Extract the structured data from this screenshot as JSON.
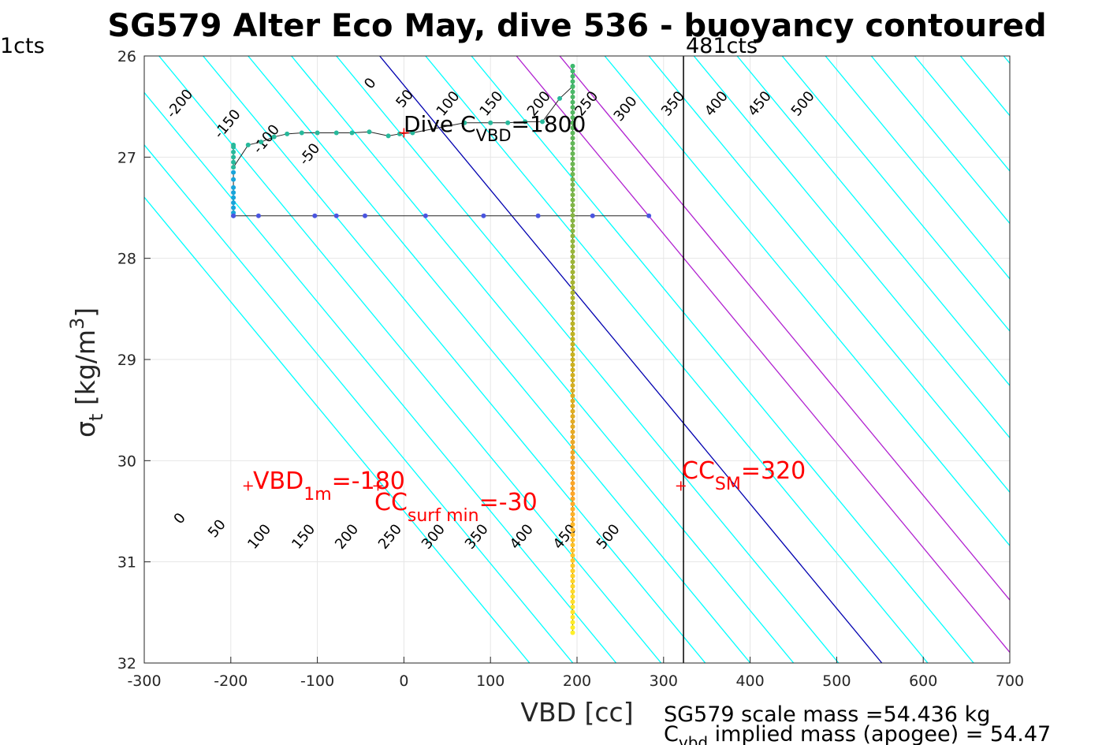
{
  "chart_data": {
    "type": "scatter",
    "title": "SG579 Alter Eco May, dive 536 - buoyancy contoured",
    "xlabel": "VBD [cc]",
    "ylabel_main": "σ",
    "ylabel_sub": "t",
    "ylabel_unit": " [kg/m",
    "ylabel_sup": "3",
    "ylabel_close": "]",
    "xlim": [
      -300,
      700
    ],
    "ylim": [
      26,
      32
    ],
    "y_reversed": true,
    "grid": true,
    "xticks": [
      -300,
      -200,
      -100,
      0,
      100,
      200,
      300,
      400,
      500,
      600,
      700
    ],
    "yticks": [
      26,
      27,
      28,
      29,
      30,
      31,
      32
    ],
    "contour_lines": {
      "slope_vbd_per_sigma": 96.7,
      "upper_labels": [
        {
          "text": "-200",
          "vbd": -255,
          "sigma": 26.5
        },
        {
          "text": "-150",
          "vbd": -200,
          "sigma": 26.7
        },
        {
          "text": "-100",
          "vbd": -155,
          "sigma": 26.85
        },
        {
          "text": "-50",
          "vbd": -105,
          "sigma": 27
        },
        {
          "text": "0",
          "vbd": -35,
          "sigma": 26.3
        },
        {
          "text": "50",
          "vbd": 5,
          "sigma": 26.45
        },
        {
          "text": "100",
          "vbd": 55,
          "sigma": 26.5
        },
        {
          "text": "150",
          "vbd": 105,
          "sigma": 26.5
        },
        {
          "text": "200",
          "vbd": 160,
          "sigma": 26.5
        },
        {
          "text": "250",
          "vbd": 215,
          "sigma": 26.5
        },
        {
          "text": "300",
          "vbd": 260,
          "sigma": 26.55
        },
        {
          "text": "350",
          "vbd": 315,
          "sigma": 26.5
        },
        {
          "text": "400",
          "vbd": 365,
          "sigma": 26.5
        },
        {
          "text": "450",
          "vbd": 415,
          "sigma": 26.5
        },
        {
          "text": "500",
          "vbd": 465,
          "sigma": 26.5
        }
      ],
      "lower_labels": [
        {
          "text": "0",
          "vbd": -255,
          "sigma": 30.6
        },
        {
          "text": "50",
          "vbd": -212,
          "sigma": 30.7
        },
        {
          "text": "100",
          "vbd": -163,
          "sigma": 30.78
        },
        {
          "text": "150",
          "vbd": -112,
          "sigma": 30.78
        },
        {
          "text": "200",
          "vbd": -62,
          "sigma": 30.78
        },
        {
          "text": "250",
          "vbd": -12,
          "sigma": 30.78
        },
        {
          "text": "300",
          "vbd": 38,
          "sigma": 30.78
        },
        {
          "text": "350",
          "vbd": 88,
          "sigma": 30.78
        },
        {
          "text": "400",
          "vbd": 140,
          "sigma": 30.78
        },
        {
          "text": "450",
          "vbd": 190,
          "sigma": 30.78
        },
        {
          "text": "500",
          "vbd": 240,
          "sigma": 30.78
        }
      ],
      "lines": [
        {
          "vbd_at_sigma26": -435,
          "color": "#00ffff"
        },
        {
          "vbd_at_sigma26": -385,
          "color": "#00ffff"
        },
        {
          "vbd_at_sigma26": -335,
          "color": "#00ffff"
        },
        {
          "vbd_at_sigma26": -283,
          "color": "#00ffff"
        },
        {
          "vbd_at_sigma26": -232,
          "color": "#00ffff"
        },
        {
          "vbd_at_sigma26": -180,
          "color": "#00ffff"
        },
        {
          "vbd_at_sigma26": -130,
          "color": "#00ffff"
        },
        {
          "vbd_at_sigma26": -78,
          "color": "#00ffff"
        },
        {
          "vbd_at_sigma26": -28,
          "color": "#0000b0"
        },
        {
          "vbd_at_sigma26": 25,
          "color": "#00ffff"
        },
        {
          "vbd_at_sigma26": 78,
          "color": "#00ffff"
        },
        {
          "vbd_at_sigma26": 130,
          "color": "#b020d0"
        },
        {
          "vbd_at_sigma26": 180,
          "color": "#b020d0"
        },
        {
          "vbd_at_sigma26": 232,
          "color": "#00ffff"
        },
        {
          "vbd_at_sigma26": 283,
          "color": "#00ffff"
        },
        {
          "vbd_at_sigma26": 335,
          "color": "#00ffff"
        },
        {
          "vbd_at_sigma26": 385,
          "color": "#00ffff"
        },
        {
          "vbd_at_sigma26": 437,
          "color": "#00ffff"
        },
        {
          "vbd_at_sigma26": 487,
          "color": "#00ffff"
        },
        {
          "vbd_at_sigma26": 540,
          "color": "#00ffff"
        },
        {
          "vbd_at_sigma26": 590,
          "color": "#00ffff"
        },
        {
          "vbd_at_sigma26": 643,
          "color": "#00ffff"
        },
        {
          "vbd_at_sigma26": 693,
          "color": "#00ffff"
        }
      ]
    },
    "vertical_limit": {
      "vbd": 323,
      "label_right": "481cts",
      "label_left": "1cts"
    },
    "series": [
      {
        "role": "surface-track",
        "points": [
          [
            -197,
            26.88
          ],
          [
            -197,
            26.9
          ],
          [
            -197,
            26.95
          ],
          [
            -197,
            27.0
          ],
          [
            -197,
            27.05
          ],
          [
            -197,
            27.1
          ],
          [
            -180,
            26.88
          ],
          [
            -165,
            26.85
          ],
          [
            -150,
            26.8
          ],
          [
            -135,
            26.77
          ],
          [
            -118,
            26.76
          ],
          [
            -100,
            26.76
          ],
          [
            -78,
            26.76
          ],
          [
            -60,
            26.76
          ],
          [
            -40,
            26.75
          ],
          [
            -18,
            26.79
          ],
          [
            -5,
            26.77
          ],
          [
            10,
            26.76
          ],
          [
            70,
            26.66
          ],
          [
            100,
            26.66
          ],
          [
            120,
            26.66
          ],
          [
            140,
            26.65
          ],
          [
            160,
            26.65
          ],
          [
            180,
            26.42
          ],
          [
            195,
            26.3
          ]
        ],
        "color": "#27b99b"
      },
      {
        "role": "descent-vertical",
        "points": [
          [
            -197,
            27.15
          ],
          [
            -197,
            27.22
          ],
          [
            -197,
            27.3
          ],
          [
            -197,
            27.35
          ],
          [
            -197,
            27.4
          ],
          [
            -197,
            27.45
          ],
          [
            -197,
            27.5
          ],
          [
            -197,
            27.55
          ],
          [
            -197,
            27.58
          ]
        ],
        "color": "#17a5db"
      },
      {
        "role": "horizontal-track",
        "points": [
          [
            -197,
            27.58
          ],
          [
            -168,
            27.58
          ],
          [
            -103,
            27.58
          ],
          [
            -78,
            27.58
          ],
          [
            -45,
            27.58
          ],
          [
            25,
            27.58
          ],
          [
            92,
            27.58
          ],
          [
            155,
            27.58
          ],
          [
            218,
            27.58
          ],
          [
            283,
            27.58
          ]
        ],
        "color": "#4a55e0"
      }
    ],
    "vertical_column": {
      "vbd": 195,
      "sigma_top": 26.1,
      "sigma_bottom": 31.7
    },
    "annotations": [
      {
        "id": "dive-cvbd",
        "main": "Dive C",
        "sub": "VBD",
        "rest": "=1800"
      },
      {
        "id": "vbd-1m",
        "main": "VBD",
        "sub": "1m",
        "rest": "=-180"
      },
      {
        "id": "cc-surf-min",
        "main": "CC",
        "sub": "surf min",
        "rest": "=-30"
      },
      {
        "id": "cc-sm",
        "main": "CC",
        "sub": "SM",
        "rest": "=320"
      }
    ],
    "markers": [
      {
        "id": "vbd-1m-marker",
        "vbd": -180,
        "sigma": 30.25
      },
      {
        "id": "cc-surf-min-marker",
        "vbd": -30,
        "sigma": 30.25
      },
      {
        "id": "cc-sm-marker",
        "vbd": 320,
        "sigma": 30.25
      },
      {
        "id": "cvbd-marker",
        "vbd": 0,
        "sigma": 26.76
      }
    ],
    "footer": {
      "line1": "SG579 scale mass =54.436 kg",
      "line2_main": "C",
      "line2_sub": "vbd",
      "line2_rest": " implied mass (apogee) = 54.47"
    }
  }
}
